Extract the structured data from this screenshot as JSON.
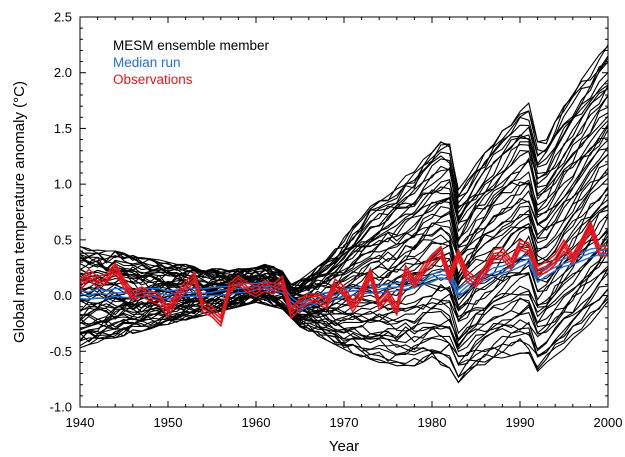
{
  "chart_data": {
    "type": "line",
    "xlabel": "Year",
    "ylabel": "Global mean temperature anomaly (°C)",
    "xlim": [
      1940,
      2000
    ],
    "ylim": [
      -1.0,
      2.5
    ],
    "x_ticks": [
      1940,
      1950,
      1960,
      1970,
      1980,
      1990,
      2000
    ],
    "x_tick_labels": [
      "1940",
      "1950",
      "1960",
      "1970",
      "1980",
      "1990",
      "2000"
    ],
    "y_ticks": [
      -1.0,
      -0.5,
      0.0,
      0.5,
      1.0,
      1.5,
      2.0,
      2.5
    ],
    "y_tick_labels": [
      "-1.0",
      "-0.5",
      "0.0",
      "0.5",
      "1.0",
      "1.5",
      "2.0",
      "2.5"
    ],
    "grid": false,
    "legend_position": "top-left",
    "legend": [
      {
        "label": "MESM ensemble member",
        "color": "#000000"
      },
      {
        "label": "Median run",
        "color": "#1f6fd6"
      },
      {
        "label": "Observations",
        "color": "#e8141c"
      }
    ],
    "ensemble": {
      "name": "MESM ensemble member",
      "color": "#000000",
      "x": [
        1940,
        1941,
        1942,
        1943,
        1944,
        1945,
        1946,
        1947,
        1948,
        1949,
        1950,
        1951,
        1952,
        1953,
        1954,
        1955,
        1956,
        1957,
        1958,
        1959,
        1960,
        1961,
        1962,
        1963,
        1964,
        1965,
        1966,
        1967,
        1968,
        1969,
        1970,
        1971,
        1972,
        1973,
        1974,
        1975,
        1976,
        1977,
        1978,
        1979,
        1980,
        1981,
        1982,
        1983,
        1984,
        1985,
        1986,
        1987,
        1988,
        1989,
        1990,
        1991,
        1992,
        1993,
        1994,
        1995,
        1996,
        1997,
        1998,
        1999,
        2000
      ],
      "upper": [
        0.44,
        0.42,
        0.42,
        0.4,
        0.4,
        0.38,
        0.36,
        0.34,
        0.33,
        0.32,
        0.3,
        0.28,
        0.28,
        0.26,
        0.24,
        0.24,
        0.24,
        0.23,
        0.24,
        0.24,
        0.25,
        0.28,
        0.26,
        0.22,
        0.1,
        0.14,
        0.2,
        0.26,
        0.32,
        0.42,
        0.52,
        0.62,
        0.7,
        0.8,
        0.85,
        0.92,
        0.98,
        1.08,
        1.12,
        1.22,
        1.3,
        1.38,
        1.4,
        0.95,
        1.06,
        1.18,
        1.28,
        1.38,
        1.48,
        1.58,
        1.68,
        1.73,
        1.38,
        1.42,
        1.56,
        1.7,
        1.82,
        1.94,
        2.05,
        2.16,
        2.25
      ],
      "lower": [
        -0.47,
        -0.44,
        -0.42,
        -0.4,
        -0.38,
        -0.36,
        -0.34,
        -0.32,
        -0.3,
        -0.28,
        -0.26,
        -0.24,
        -0.22,
        -0.2,
        -0.18,
        -0.16,
        -0.14,
        -0.12,
        -0.1,
        -0.08,
        -0.06,
        -0.08,
        -0.1,
        -0.12,
        -0.2,
        -0.28,
        -0.32,
        -0.36,
        -0.4,
        -0.44,
        -0.48,
        -0.52,
        -0.55,
        -0.58,
        -0.6,
        -0.62,
        -0.63,
        -0.64,
        -0.63,
        -0.62,
        -0.6,
        -0.62,
        -0.65,
        -0.78,
        -0.72,
        -0.66,
        -0.62,
        -0.58,
        -0.56,
        -0.54,
        -0.52,
        -0.52,
        -0.68,
        -0.62,
        -0.55,
        -0.48,
        -0.4,
        -0.32,
        -0.25,
        -0.15,
        -0.05
      ],
      "members": 60
    },
    "series": [
      {
        "name": "Median run",
        "color": "#1f6fd6",
        "x": [
          1940,
          1941,
          1942,
          1943,
          1944,
          1945,
          1946,
          1947,
          1948,
          1949,
          1950,
          1951,
          1952,
          1953,
          1954,
          1955,
          1956,
          1957,
          1958,
          1959,
          1960,
          1961,
          1962,
          1963,
          1964,
          1965,
          1966,
          1967,
          1968,
          1969,
          1970,
          1971,
          1972,
          1973,
          1974,
          1975,
          1976,
          1977,
          1978,
          1979,
          1980,
          1981,
          1982,
          1983,
          1984,
          1985,
          1986,
          1987,
          1988,
          1989,
          1990,
          1991,
          1992,
          1993,
          1994,
          1995,
          1996,
          1997,
          1998,
          1999,
          2000
        ],
        "y": [
          0.01,
          0.0,
          0.02,
          0.01,
          0.03,
          0.02,
          0.01,
          0.02,
          0.03,
          0.02,
          0.01,
          0.02,
          0.03,
          0.03,
          0.02,
          0.03,
          0.04,
          0.05,
          0.06,
          0.07,
          0.08,
          0.09,
          0.08,
          0.06,
          -0.05,
          -0.1,
          -0.06,
          -0.03,
          -0.01,
          0.01,
          0.03,
          0.04,
          0.05,
          0.06,
          0.06,
          0.07,
          0.08,
          0.09,
          0.1,
          0.13,
          0.16,
          0.19,
          0.18,
          0.02,
          0.09,
          0.14,
          0.17,
          0.21,
          0.23,
          0.26,
          0.3,
          0.33,
          0.16,
          0.21,
          0.26,
          0.29,
          0.32,
          0.35,
          0.38,
          0.4,
          0.42
        ]
      },
      {
        "name": "Observations",
        "color": "#e8141c",
        "x": [
          1940,
          1941,
          1942,
          1943,
          1944,
          1945,
          1946,
          1947,
          1948,
          1949,
          1950,
          1951,
          1952,
          1953,
          1954,
          1955,
          1956,
          1957,
          1958,
          1959,
          1960,
          1961,
          1962,
          1963,
          1964,
          1965,
          1966,
          1967,
          1968,
          1969,
          1970,
          1971,
          1972,
          1973,
          1974,
          1975,
          1976,
          1977,
          1978,
          1979,
          1980,
          1981,
          1982,
          1983,
          1984,
          1985,
          1986,
          1987,
          1988,
          1989,
          1990,
          1991,
          1992,
          1993,
          1994,
          1995,
          1996,
          1997,
          1998,
          1999,
          2000
        ],
        "y": [
          0.09,
          0.19,
          0.12,
          0.15,
          0.25,
          0.11,
          0.0,
          0.04,
          -0.01,
          -0.03,
          -0.14,
          -0.01,
          0.08,
          0.17,
          -0.1,
          -0.15,
          -0.22,
          0.07,
          0.13,
          0.07,
          0.03,
          0.09,
          0.06,
          0.12,
          -0.15,
          -0.07,
          -0.02,
          -0.03,
          -0.07,
          0.1,
          0.04,
          -0.1,
          0.02,
          0.2,
          -0.08,
          0.0,
          -0.13,
          0.22,
          0.11,
          0.23,
          0.33,
          0.4,
          0.17,
          0.37,
          0.17,
          0.12,
          0.22,
          0.37,
          0.38,
          0.28,
          0.45,
          0.42,
          0.22,
          0.25,
          0.32,
          0.45,
          0.33,
          0.47,
          0.62,
          0.4,
          0.4
        ]
      }
    ]
  }
}
